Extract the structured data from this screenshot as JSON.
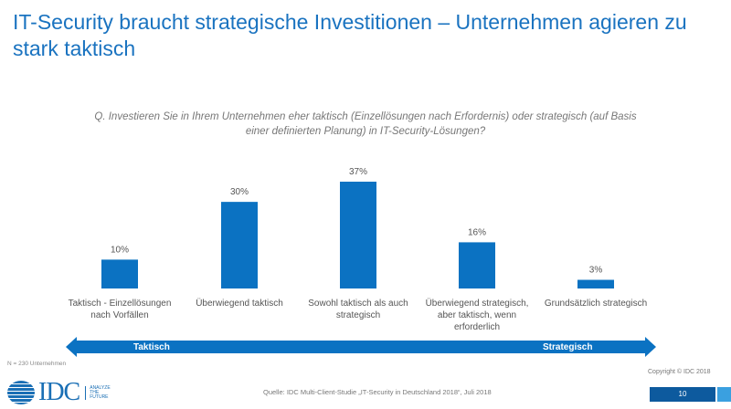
{
  "title": "IT-Security braucht strategische Investitionen – Unternehmen agieren zu stark taktisch",
  "question": "Q. Investieren Sie in Ihrem Unternehmen eher taktisch (Einzellösungen nach Erfordernis) oder strategisch (auf Basis einer definierten Planung) in IT-Security-Lösungen?",
  "chart_data": {
    "type": "bar",
    "categories": [
      "Taktisch - Einzellösungen nach Vorfällen",
      "Überwiegend taktisch",
      "Sowohl taktisch als auch strategisch",
      "Überwiegend strategisch, aber taktisch, wenn erforderlich",
      "Grundsätzlich strategisch"
    ],
    "values": [
      10,
      30,
      37,
      16,
      3
    ],
    "data_labels": [
      "10%",
      "30%",
      "37%",
      "16%",
      "3%"
    ],
    "ylim": [
      0,
      40
    ],
    "grid": false,
    "bar_color": "#0b72c2"
  },
  "scale": {
    "left": "Taktisch",
    "right": "Strategisch"
  },
  "sample": "N = 230 Unternehmen",
  "copyright": "Copyright © IDC 2018",
  "source": "Quelle: IDC Multi-Client-Studie „IT-Security in Deutschland 2018“, Juli 2018",
  "logo": {
    "text": "IDC",
    "tagline": "ANALYZE THE FUTURE"
  },
  "page_number": "10"
}
